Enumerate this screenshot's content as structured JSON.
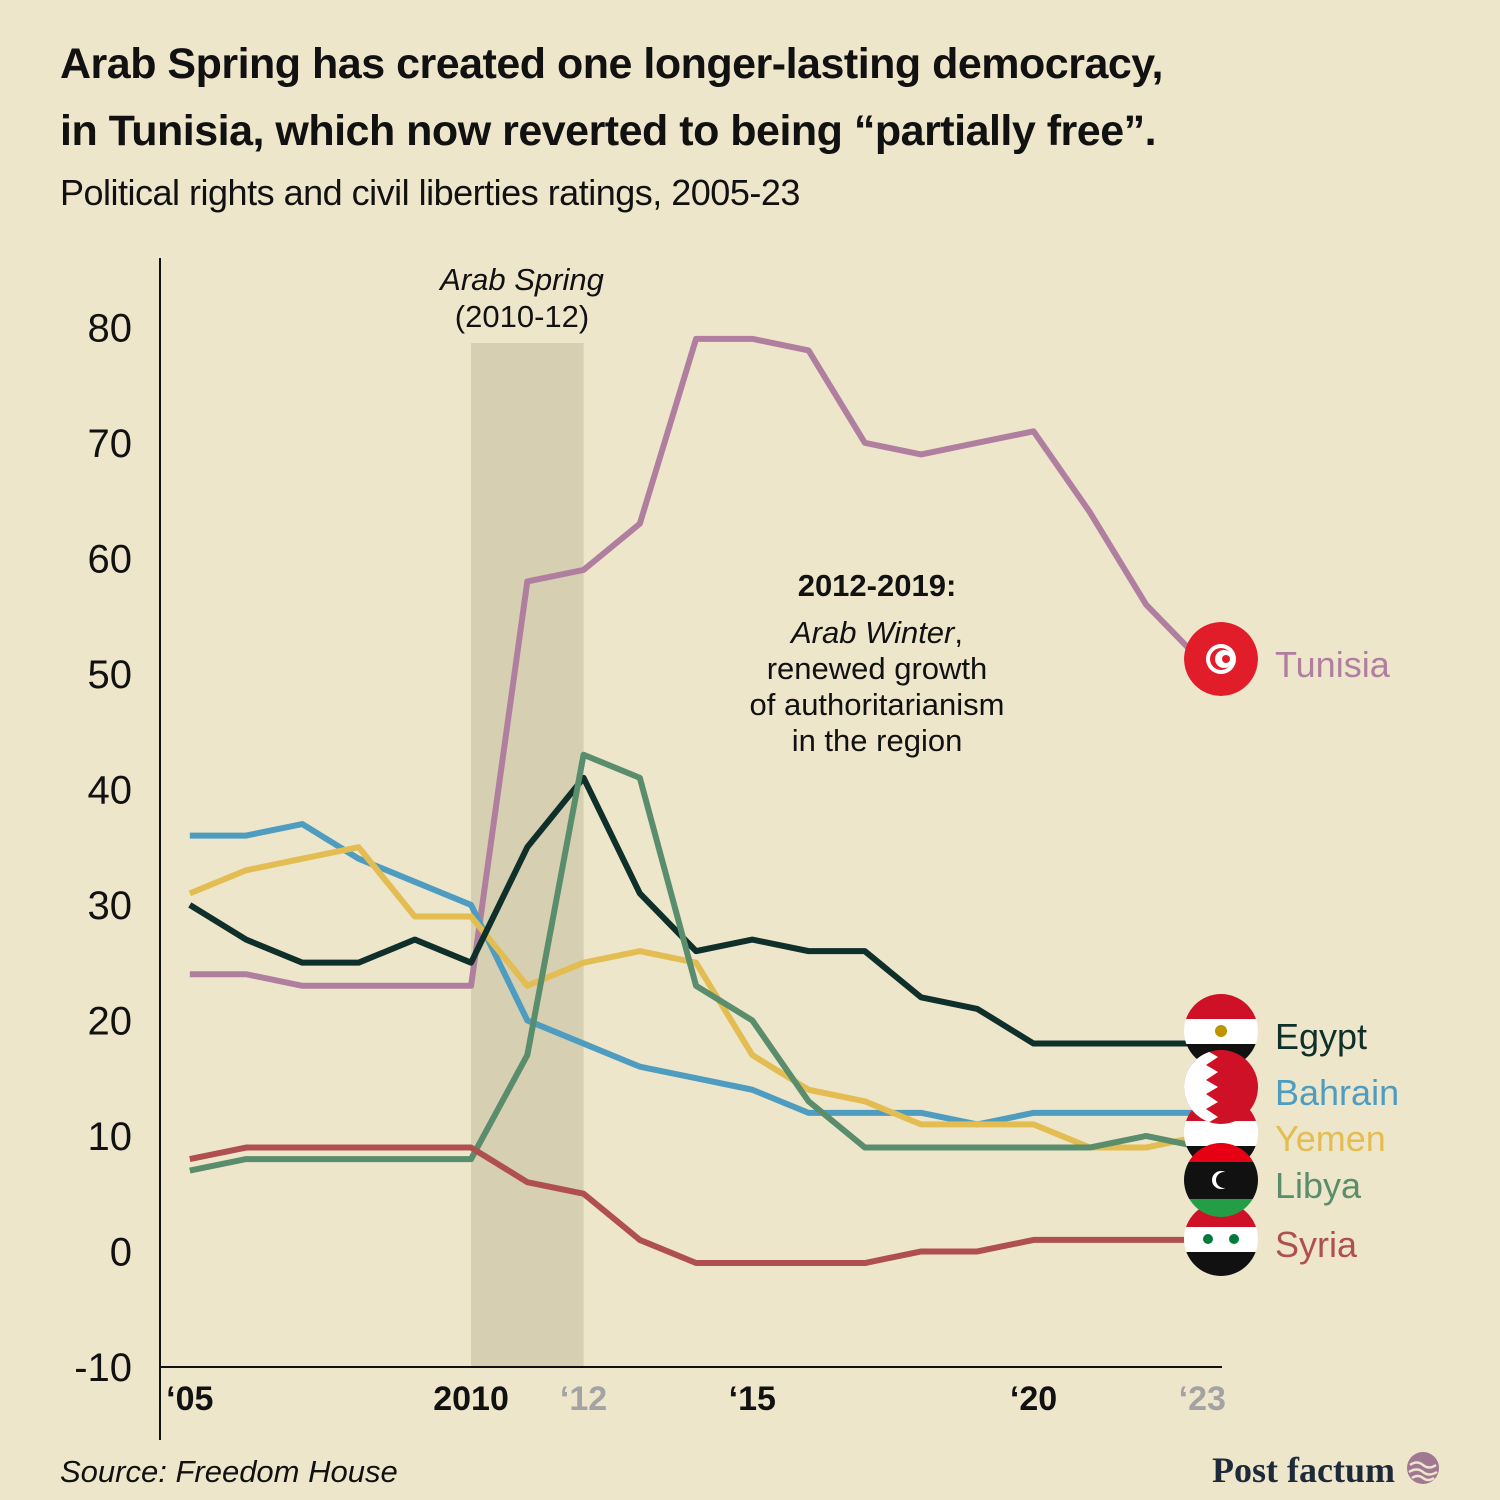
{
  "title": [
    "Arab Spring has created one longer-lasting democracy,",
    "in Tunisia, which now reverted to being “partially free”."
  ],
  "subtitle": "Political rights and civil liberties ratings, 2005-23",
  "chart_data": {
    "type": "line",
    "x": [
      2005,
      2006,
      2007,
      2008,
      2009,
      2010,
      2011,
      2012,
      2013,
      2014,
      2015,
      2016,
      2017,
      2018,
      2019,
      2020,
      2021,
      2022,
      2023
    ],
    "series": [
      {
        "name": "Tunisia",
        "color": "#b07fa0",
        "values": [
          24,
          24,
          23,
          23,
          23,
          23,
          58,
          59,
          63,
          79,
          79,
          78,
          70,
          69,
          70,
          71,
          64,
          56,
          51
        ]
      },
      {
        "name": "Bahrain",
        "color": "#4e9dc0",
        "values": [
          36,
          36,
          37,
          34,
          32,
          30,
          20,
          18,
          16,
          15,
          14,
          12,
          12,
          12,
          11,
          12,
          12,
          12,
          12
        ]
      },
      {
        "name": "Yemen",
        "color": "#e3bd52",
        "values": [
          31,
          33,
          34,
          35,
          29,
          29,
          23,
          25,
          26,
          25,
          17,
          14,
          13,
          11,
          11,
          11,
          9,
          9,
          10
        ]
      },
      {
        "name": "Egypt",
        "color": "#0f2f2a",
        "values": [
          30,
          27,
          25,
          25,
          27,
          25,
          35,
          41,
          31,
          26,
          27,
          26,
          26,
          22,
          21,
          18,
          18,
          18,
          18
        ]
      },
      {
        "name": "Libya",
        "color": "#5a8d6c",
        "values": [
          7,
          8,
          8,
          8,
          8,
          8,
          17,
          43,
          41,
          23,
          20,
          13,
          9,
          9,
          9,
          9,
          9,
          10,
          9
        ]
      },
      {
        "name": "Syria",
        "color": "#b04f50",
        "values": [
          8,
          9,
          9,
          9,
          9,
          9,
          6,
          5,
          1,
          -1,
          -1,
          -1,
          -1,
          0,
          0,
          1,
          1,
          1,
          1
        ]
      }
    ],
    "xlim": [
      2004.47,
      2023.35
    ],
    "ylim": [
      -10,
      86
    ],
    "yticks": [
      -10,
      0,
      10,
      20,
      30,
      40,
      50,
      60,
      70,
      80
    ],
    "xticks": [
      {
        "value": 2005,
        "label": "‘05"
      },
      2010,
      {
        "value": 2012,
        "label": "‘12"
      },
      {
        "value": 2015,
        "label": "‘15"
      },
      {
        "value": 2020,
        "label": "‘20"
      },
      {
        "value": 2023,
        "label": "‘23"
      }
    ],
    "xtick_colors": [
      "#111",
      "#111",
      "#a3a3a3",
      "#111",
      "#111",
      "#a3a3a3"
    ],
    "highlight": {
      "x": [
        2010,
        2012
      ],
      "color": "#d6cfb2"
    },
    "annotations": {
      "spring": [
        "Arab Spring",
        "(2010-12)"
      ],
      "winter": {
        "heading": "2012-2019:",
        "italic": "Arab Winter",
        "rest": [
          ",",
          "renewed growth",
          "of authoritarianism",
          "in the region"
        ]
      }
    }
  },
  "source": "Source: Freedom House",
  "brand": "Post factum"
}
